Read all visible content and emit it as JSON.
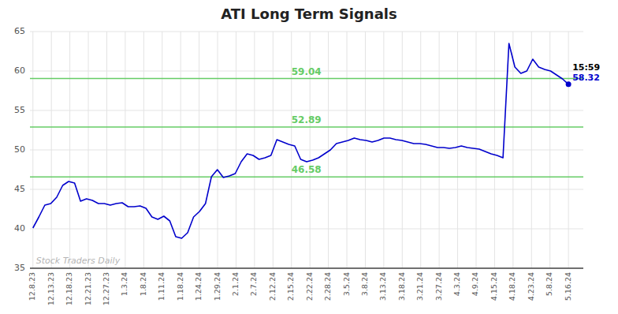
{
  "chart_data": {
    "type": "line",
    "title": "ATI Long Term Signals",
    "x": [
      0,
      1,
      2,
      3,
      4,
      5,
      6,
      7,
      8,
      9,
      10,
      11,
      12,
      13,
      14,
      15,
      16,
      17,
      18,
      19,
      20,
      21,
      22,
      23,
      24,
      25,
      26,
      27,
      28,
      29,
      30,
      31,
      32,
      33,
      34,
      35,
      36,
      37,
      38,
      39,
      40,
      41,
      42,
      43,
      44,
      45,
      46,
      47,
      48,
      49,
      50,
      51,
      52,
      53,
      54,
      55,
      56,
      57,
      58,
      59,
      60,
      61,
      62,
      63,
      64,
      65,
      66,
      67,
      68,
      69,
      70,
      71,
      72,
      73,
      74,
      75,
      76,
      77,
      78,
      79,
      80,
      81,
      82,
      83,
      84,
      85,
      86,
      87,
      88,
      89,
      90
    ],
    "series": [
      {
        "color": "#0000cc",
        "values": [
          40.1,
          41.5,
          43.0,
          43.2,
          44.0,
          45.5,
          46.0,
          45.8,
          43.5,
          43.8,
          43.6,
          43.2,
          43.2,
          43.0,
          43.2,
          43.3,
          42.8,
          42.8,
          42.9,
          42.6,
          41.5,
          41.2,
          41.6,
          41.0,
          39.0,
          38.8,
          39.5,
          41.5,
          42.2,
          43.2,
          46.6,
          47.5,
          46.5,
          46.7,
          47.0,
          48.5,
          49.5,
          49.3,
          48.8,
          49.0,
          49.3,
          51.3,
          51.0,
          50.7,
          50.5,
          48.8,
          48.5,
          48.7,
          49.0,
          49.5,
          50.0,
          50.8,
          51.0,
          51.2,
          51.5,
          51.3,
          51.2,
          51.0,
          51.2,
          51.5,
          51.5,
          51.3,
          51.2,
          51.0,
          50.8,
          50.8,
          50.7,
          50.5,
          50.3,
          50.3,
          50.2,
          50.3,
          50.5,
          50.3,
          50.2,
          50.1,
          49.8,
          49.5,
          49.3,
          49.0,
          63.5,
          60.5,
          59.7,
          60.0,
          61.5,
          60.5,
          60.2,
          60.0,
          59.5,
          59.0,
          58.32
        ]
      }
    ],
    "hlines": [
      {
        "value": 46.58,
        "label": "46.58",
        "color": "#66cc66"
      },
      {
        "value": 52.89,
        "label": "52.89",
        "color": "#66cc66"
      },
      {
        "value": 59.04,
        "label": "59.04",
        "color": "#66cc66"
      }
    ],
    "annotations": [
      {
        "text": "15:59",
        "color": "#000000"
      },
      {
        "text": "58.32",
        "color": "#0000cc"
      },
      {
        "text": "Stock Traders Daily",
        "color": "#aaaaaa"
      }
    ],
    "xlim": [
      -0.5,
      92.5
    ],
    "xticks": [
      {
        "value": 0,
        "label": "12.8.23"
      },
      {
        "value": 3.1034,
        "label": "12.13.23"
      },
      {
        "value": 6.2069,
        "label": "12.18.23"
      },
      {
        "value": 9.3103,
        "label": "12.21.23"
      },
      {
        "value": 12.4138,
        "label": "12.27.23"
      },
      {
        "value": 15.5172,
        "label": "1.3.24"
      },
      {
        "value": 18.6207,
        "label": "1.8.24"
      },
      {
        "value": 21.7241,
        "label": "1.11.24"
      },
      {
        "value": 24.8276,
        "label": "1.18.24"
      },
      {
        "value": 27.931,
        "label": "1.24.24"
      },
      {
        "value": 31.0345,
        "label": "1.29.24"
      },
      {
        "value": 34.1379,
        "label": "2.1.24"
      },
      {
        "value": 37.2414,
        "label": "2.7.24"
      },
      {
        "value": 40.3448,
        "label": "2.12.24"
      },
      {
        "value": 43.4483,
        "label": "2.15.24"
      },
      {
        "value": 46.5517,
        "label": "2.22.24"
      },
      {
        "value": 49.6552,
        "label": "2.28.24"
      },
      {
        "value": 52.7586,
        "label": "3.5.24"
      },
      {
        "value": 55.8621,
        "label": "3.8.24"
      },
      {
        "value": 58.9655,
        "label": "3.13.24"
      },
      {
        "value": 62.069,
        "label": "3.18.24"
      },
      {
        "value": 65.1724,
        "label": "3.21.24"
      },
      {
        "value": 68.2759,
        "label": "3.27.24"
      },
      {
        "value": 71.3793,
        "label": "4.3.24"
      },
      {
        "value": 74.4828,
        "label": "4.9.24"
      },
      {
        "value": 77.5862,
        "label": "4.15.24"
      },
      {
        "value": 80.6897,
        "label": "4.18.24"
      },
      {
        "value": 83.7931,
        "label": "4.23.24"
      },
      {
        "value": 86.8966,
        "label": "5.8.24"
      },
      {
        "value": 90,
        "label": "5.16.24"
      }
    ],
    "ylim": [
      35,
      65
    ],
    "yticks": [
      35,
      40,
      45,
      50,
      55,
      60,
      65
    ],
    "grid": true
  }
}
